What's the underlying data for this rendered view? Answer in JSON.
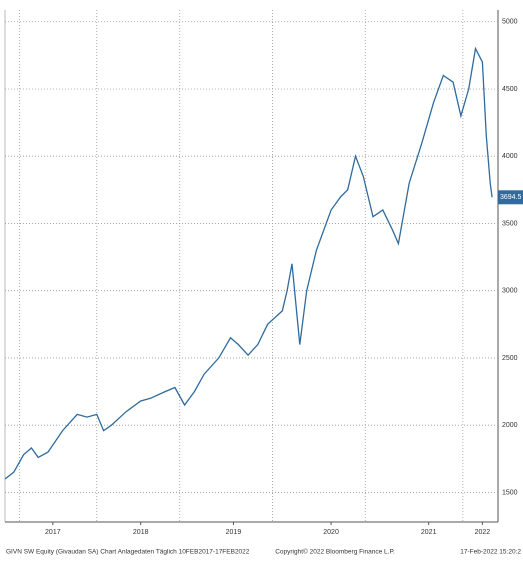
{
  "chart_data": {
    "type": "line",
    "x": [
      2017.11,
      2017.2,
      2017.3,
      2017.38,
      2017.45,
      2017.55,
      2017.7,
      2017.85,
      2017.95,
      2018.05,
      2018.12,
      2018.2,
      2018.35,
      2018.5,
      2018.6,
      2018.75,
      2018.85,
      2018.95,
      2019.05,
      2019.15,
      2019.3,
      2019.42,
      2019.5,
      2019.6,
      2019.7,
      2019.8,
      2019.95,
      2020.0,
      2020.05,
      2020.13,
      2020.2,
      2020.3,
      2020.45,
      2020.55,
      2020.62,
      2020.7,
      2020.78,
      2020.88,
      2020.98,
      2021.08,
      2021.14,
      2021.25,
      2021.38,
      2021.5,
      2021.6,
      2021.7,
      2021.78,
      2021.86,
      2021.93,
      2022.0,
      2022.04,
      2022.08,
      2022.1
    ],
    "series": [
      {
        "name": "GIVN SW Equity",
        "color": "#2f6b9e",
        "values": [
          1600,
          1650,
          1780,
          1830,
          1760,
          1800,
          1960,
          2080,
          2060,
          2080,
          1960,
          2000,
          2100,
          2180,
          2200,
          2250,
          2280,
          2150,
          2250,
          2380,
          2500,
          2650,
          2600,
          2520,
          2600,
          2750,
          2850,
          3000,
          3200,
          2600,
          3000,
          3300,
          3600,
          3700,
          3750,
          4000,
          3850,
          3550,
          3600,
          3450,
          3350,
          3800,
          4100,
          4400,
          4600,
          4550,
          4300,
          4500,
          4800,
          4700,
          4150,
          3800,
          3694.5
        ]
      }
    ],
    "last_label": "3694.5",
    "xlim": [
      2017.11,
      2022.16
    ],
    "xticks": [
      {
        "value": 2017.6,
        "label": "2017"
      },
      {
        "value": 2018.5,
        "label": "2018"
      },
      {
        "value": 2019.45,
        "label": "2019"
      },
      {
        "value": 2020.45,
        "label": "2020"
      },
      {
        "value": 2021.45,
        "label": "2021"
      },
      {
        "value": 2022.0,
        "label": "2022"
      }
    ],
    "xgrid": [
      2017.26,
      2018.05,
      2018.9,
      2019.85,
      2020.8,
      2021.8
    ],
    "ylim": [
      1280,
      5050
    ],
    "yticks": [
      1500,
      2000,
      2500,
      3000,
      3500,
      4000,
      4500,
      5000
    ],
    "grid": true,
    "footer_left": "GIVN SW Equity (Givaudan SA) Chart Anlagedaten  Täglich 10FEB2017-17FEB2022",
    "footer_center": "Copyright© 2022 Bloomberg Finance L.P.",
    "footer_right": "17-Feb-2022 15:20:2"
  }
}
